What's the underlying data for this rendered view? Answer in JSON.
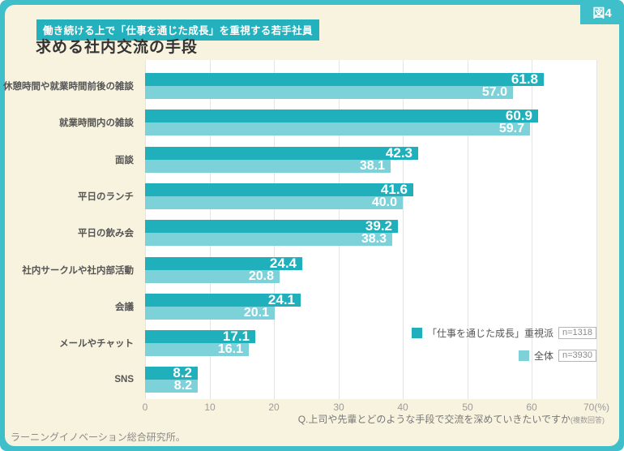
{
  "figure_label": "図4",
  "header": {
    "tag": "働き続ける上で「仕事を通じた成長」を重視する若手社員",
    "title": "求める社内交流の手段"
  },
  "chart_data": {
    "type": "bar",
    "orientation": "horizontal",
    "title": "求める社内交流の手段",
    "categories": [
      "休憩時間や就業時間前後の雑談",
      "就業時間内の雑談",
      "面談",
      "平日のランチ",
      "平日の飲み会",
      "社内サークルや社内部活動",
      "会議",
      "メールやチャット",
      "SNS"
    ],
    "series": [
      {
        "name": "「仕事を通じた成長」重視派",
        "n_label": "n=1318",
        "color": "#1fb0bc",
        "values": [
          61.8,
          60.9,
          42.3,
          41.6,
          39.2,
          24.4,
          24.1,
          17.1,
          8.2
        ]
      },
      {
        "name": "全体",
        "n_label": "n=3930",
        "color": "#7dd2da",
        "values": [
          57.0,
          59.7,
          38.1,
          40.0,
          38.3,
          20.8,
          20.1,
          16.1,
          8.2
        ]
      }
    ],
    "xlim": [
      0,
      70
    ],
    "x_ticks": [
      "0",
      "10",
      "20",
      "30",
      "40",
      "50",
      "60",
      "70(%)"
    ],
    "grid": true,
    "legend_position": "right-middle",
    "value_labels": "inside-end"
  },
  "footer": {
    "question": "Q.上司や先輩とどのような手段で交流を深めていきたいですか",
    "question_note": "(複数回答)",
    "source": "ラーニングイノベーション総合研究所。"
  },
  "colors": {
    "frame_teal": "#3fbfc9",
    "card_cream": "#f8f3de",
    "tag_teal": "#23b2bd",
    "bar_dark": "#1fb0bc",
    "bar_light": "#7dd2da",
    "plot_bg": "#ffffff",
    "gridline": "#e4e4e4",
    "value_text": "#ffffff",
    "category_text": "#555555",
    "axis_text": "#9b9b9b"
  }
}
